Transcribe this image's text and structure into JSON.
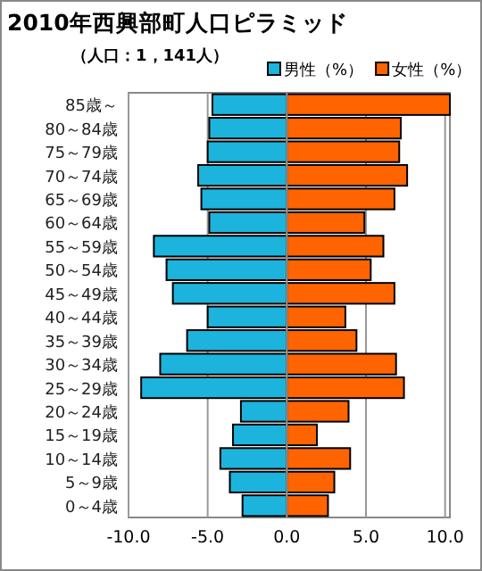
{
  "chart_data": {
    "type": "bar",
    "orientation": "horizontal",
    "stacked": true,
    "title": "2010年西興部町人口ピラミッド",
    "subtitle": "（人口：1，141人）",
    "categories": [
      "85歳～",
      "80～84歳",
      "75～79歳",
      "70～74歳",
      "65～69歳",
      "60～64歳",
      "55～59歳",
      "50～54歳",
      "45～49歳",
      "40～44歳",
      "35～39歳",
      "30～34歳",
      "25～29歳",
      "20～24歳",
      "15～19歳",
      "10～14歳",
      "5～9歳",
      "0～4歳"
    ],
    "series": [
      {
        "name": "男性（%）",
        "color": "#1cb4dc",
        "values": [
          -4.7,
          -4.9,
          -5.0,
          -5.6,
          -5.4,
          -4.9,
          -8.4,
          -7.6,
          -7.2,
          -5.0,
          -6.3,
          -8.0,
          -9.2,
          -2.9,
          -3.4,
          -4.2,
          -3.6,
          -2.8
        ]
      },
      {
        "name": "女性（%）",
        "color": "#ff6400",
        "values": [
          10.3,
          7.2,
          7.1,
          7.6,
          6.8,
          4.9,
          6.1,
          5.3,
          6.8,
          3.7,
          4.4,
          6.9,
          7.4,
          3.9,
          1.9,
          4.0,
          3.0,
          2.6
        ]
      }
    ],
    "xlim": [
      -10,
      10.3
    ],
    "xticks": [
      {
        "value": -10,
        "label": "-10.0"
      },
      {
        "value": -5,
        "label": "-5.0"
      },
      {
        "value": 0,
        "label": "0.0"
      },
      {
        "value": 5,
        "label": "5.0"
      },
      {
        "value": 10,
        "label": "10.0"
      }
    ],
    "grid": "x",
    "legend": "top right"
  }
}
